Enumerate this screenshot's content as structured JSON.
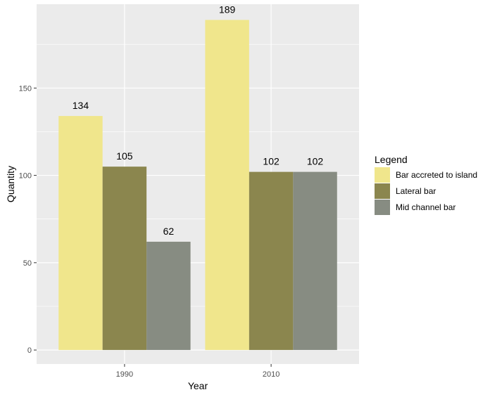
{
  "chart_data": {
    "type": "bar",
    "xlabel": "Year",
    "ylabel": "Quantity",
    "categories": [
      "1990",
      "2010"
    ],
    "series": [
      {
        "name": "Bar accreted to island",
        "color": "#F0E68C",
        "values": [
          134,
          189
        ]
      },
      {
        "name": "Lateral bar",
        "color": "#8B864E",
        "values": [
          105,
          102
        ]
      },
      {
        "name": "Mid channel bar",
        "color": "#878C82",
        "values": [
          62,
          102
        ]
      }
    ],
    "ylim": [
      -8,
      198
    ],
    "yticks": [
      0,
      50,
      100,
      150
    ],
    "grid": true,
    "legend": {
      "title": "Legend",
      "position": "right"
    }
  }
}
